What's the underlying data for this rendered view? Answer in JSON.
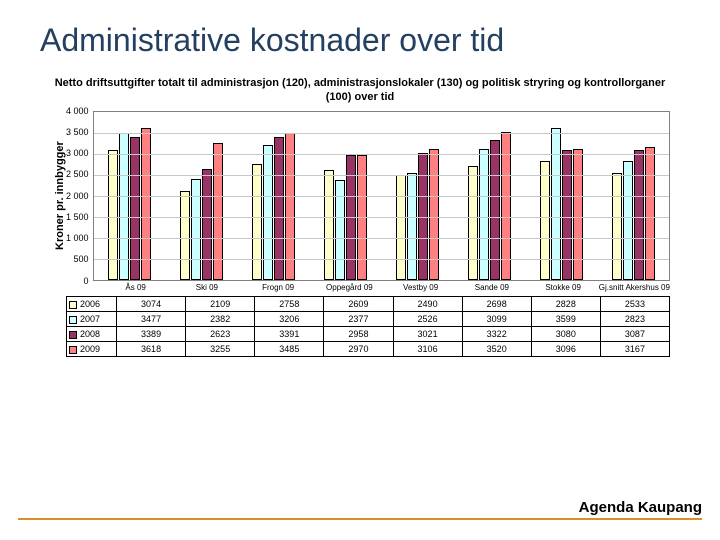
{
  "slide": {
    "title": "Administrative kostnader over tid",
    "footer": "Agenda Kaupang",
    "footer_rule_color": "#d98f2e",
    "title_color": "#244060"
  },
  "chart": {
    "type": "bar",
    "title": "Netto driftsuttgifter totalt til administrasjon (120), administrasjonslokaler (130) og politisk stryring og kontrollorganer (100) over tid",
    "ylabel": "Kroner pr. innbygger",
    "ylim": [
      0,
      4000
    ],
    "ytick_step": 500,
    "yticks": [
      "4 000",
      "3 500",
      "3 000",
      "2 500",
      "2 000",
      "1 500",
      "1 000",
      "500",
      "0"
    ],
    "grid_color": "#c8c8c8",
    "plot_border_color": "#808080",
    "background_color": "#ffffff",
    "categories": [
      "Ås 09",
      "Ski 09",
      "Frogn 09",
      "Oppegård 09",
      "Vestby 09",
      "Sande 09",
      "Stokke 09",
      "Gj.snitt Akershus 09"
    ],
    "series": [
      {
        "name": "2006",
        "color": "#ffffcc",
        "values": [
          3074,
          2109,
          2758,
          2609,
          2490,
          2698,
          2828,
          2533
        ]
      },
      {
        "name": "2007",
        "color": "#ccffff",
        "values": [
          3477,
          2382,
          3206,
          2377,
          2526,
          3099,
          3599,
          2823
        ]
      },
      {
        "name": "2008",
        "color": "#993366",
        "values": [
          3389,
          2623,
          3391,
          2958,
          3021,
          3322,
          3080,
          3087
        ]
      },
      {
        "name": "2009",
        "color": "#ff8080",
        "values": [
          3618,
          3255,
          3485,
          2970,
          3106,
          3520,
          3096,
          3167
        ]
      }
    ],
    "bar_border_color": "#000000",
    "table_border_color": "#000000",
    "font_size_title_pt": 11,
    "font_size_axis_pt": 9,
    "font_size_table_pt": 9
  }
}
